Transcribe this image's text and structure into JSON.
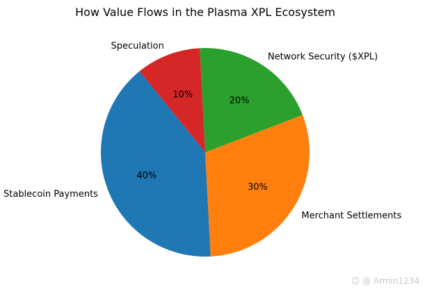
{
  "chart_data": {
    "type": "pie",
    "title": "How Value Flows in the Plasma XPL Ecosystem",
    "slices": [
      {
        "label": "Stablecoin Payments",
        "value": 40,
        "pct_label": "40%",
        "color": "#1f77b4"
      },
      {
        "label": "Merchant Settlements",
        "value": 30,
        "pct_label": "30%",
        "color": "#ff7f0e"
      },
      {
        "label": "Network Security ($XPL)",
        "value": 20,
        "pct_label": "20%",
        "color": "#2ca02c"
      },
      {
        "label": "Speculation",
        "value": 10,
        "pct_label": "10%",
        "color": "#d62728"
      }
    ],
    "legend": "none"
  },
  "watermark": "Armin1234"
}
